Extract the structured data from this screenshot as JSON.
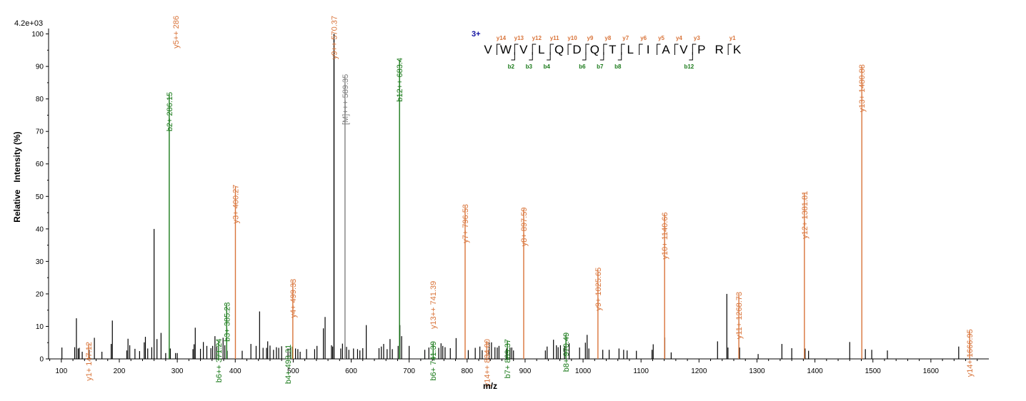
{
  "chart_data": {
    "type": "bar",
    "scale_label": "4.2e+03",
    "xlabel": "m/z",
    "ylabel": "Relative   Intensity (%)",
    "xlim": [
      78,
      1700
    ],
    "ylim": [
      0,
      101
    ],
    "grid": false,
    "x_ticks": [
      100,
      200,
      300,
      400,
      500,
      600,
      700,
      800,
      900,
      1000,
      1100,
      1200,
      1300,
      1400,
      1500,
      1600
    ],
    "x_tick_labels": [
      "100",
      "200",
      "300",
      "400",
      "500",
      "600",
      "700",
      "800",
      "900",
      "1000",
      "1100",
      "1200",
      "1300",
      "1400",
      "1500",
      "1600"
    ],
    "y_ticks": [
      0,
      10,
      20,
      30,
      40,
      50,
      60,
      70,
      80,
      90,
      100
    ],
    "y_tick_labels": [
      "0",
      "10",
      "20",
      "30",
      "40",
      "50",
      "60",
      "70",
      "80",
      "90",
      "100"
    ],
    "colors": {
      "unassigned": "#000000",
      "y_ion": "#d9743a",
      "b_ion": "#1a7a1a",
      "precursor": "#808080",
      "charge": "#1010a0"
    },
    "peaks": [
      [
        101,
        3.5
      ],
      [
        123,
        3.6
      ],
      [
        126,
        12.5
      ],
      [
        129,
        3.2
      ],
      [
        131,
        3.4
      ],
      [
        136,
        2.2
      ],
      [
        148,
        2.8
      ],
      [
        157,
        6.5
      ],
      [
        170,
        2.2
      ],
      [
        186,
        4.6
      ],
      [
        188,
        11.8
      ],
      [
        213,
        2.6
      ],
      [
        215,
        6.2
      ],
      [
        218,
        4.2
      ],
      [
        227,
        3.1
      ],
      [
        235,
        2.4
      ],
      [
        243,
        5.1
      ],
      [
        245,
        6.8
      ],
      [
        249,
        3.2
      ],
      [
        256,
        3.6
      ],
      [
        260,
        40
      ],
      [
        265,
        6.1
      ],
      [
        272,
        8
      ],
      [
        280,
        1.8
      ],
      [
        288,
        3.2
      ],
      [
        297,
        1.8
      ],
      [
        300,
        1.8
      ],
      [
        327,
        3
      ],
      [
        329,
        4.5
      ],
      [
        331,
        9.6
      ],
      [
        340,
        3.1
      ],
      [
        345,
        5.2
      ],
      [
        351,
        4
      ],
      [
        358,
        3.3
      ],
      [
        361,
        4
      ],
      [
        365,
        7
      ],
      [
        368,
        3.8
      ],
      [
        379,
        6.5
      ],
      [
        382,
        4.2
      ],
      [
        386,
        2.5
      ],
      [
        412,
        2.5
      ],
      [
        427,
        4.6
      ],
      [
        436,
        4
      ],
      [
        442,
        14.6
      ],
      [
        448,
        3.4
      ],
      [
        454,
        3.4
      ],
      [
        456,
        5.4
      ],
      [
        460,
        4.1
      ],
      [
        466,
        2.8
      ],
      [
        471,
        3.6
      ],
      [
        475,
        3.4
      ],
      [
        480,
        3.9
      ],
      [
        491,
        3.2
      ],
      [
        495,
        3.5
      ],
      [
        504,
        3.2
      ],
      [
        508,
        3
      ],
      [
        512,
        2.2
      ],
      [
        523,
        3
      ],
      [
        537,
        3
      ],
      [
        541,
        4
      ],
      [
        552,
        9.4
      ],
      [
        555,
        12.9
      ],
      [
        566,
        4.2
      ],
      [
        568,
        3.8
      ],
      [
        582,
        3.2
      ],
      [
        585,
        4.7
      ],
      [
        592,
        3.7
      ],
      [
        596,
        2.8
      ],
      [
        604,
        3.2
      ],
      [
        611,
        3
      ],
      [
        615,
        2.6
      ],
      [
        620,
        3.3
      ],
      [
        626,
        10.4
      ],
      [
        648,
        3.3
      ],
      [
        652,
        3.8
      ],
      [
        656,
        4.6
      ],
      [
        662,
        3
      ],
      [
        667,
        6.1
      ],
      [
        671,
        3
      ],
      [
        681,
        4
      ],
      [
        684,
        10.4
      ],
      [
        687,
        7
      ],
      [
        700,
        4
      ],
      [
        727,
        2.8
      ],
      [
        734,
        3.5
      ],
      [
        751,
        3.4
      ],
      [
        755,
        4.8
      ],
      [
        758,
        4
      ],
      [
        762,
        3.6
      ],
      [
        771,
        3.3
      ],
      [
        781,
        6.4
      ],
      [
        802,
        2.7
      ],
      [
        814,
        3.4
      ],
      [
        822,
        3.8
      ],
      [
        826,
        2.7
      ],
      [
        838,
        5
      ],
      [
        842,
        5.1
      ],
      [
        848,
        3.6
      ],
      [
        852,
        3.5
      ],
      [
        855,
        4
      ],
      [
        868,
        3.2
      ],
      [
        874,
        3.5
      ],
      [
        877,
        3.5
      ],
      [
        880,
        2.6
      ],
      [
        935,
        2.6
      ],
      [
        938,
        3.8
      ],
      [
        949,
        5.9
      ],
      [
        954,
        4.2
      ],
      [
        957,
        3.6
      ],
      [
        961,
        4.2
      ],
      [
        968,
        4
      ],
      [
        976,
        4.8
      ],
      [
        994,
        3.5
      ],
      [
        1004,
        5
      ],
      [
        1007,
        7.4
      ],
      [
        1010,
        3.2
      ],
      [
        1034,
        2.8
      ],
      [
        1045,
        2.8
      ],
      [
        1062,
        3.2
      ],
      [
        1070,
        2.8
      ],
      [
        1076,
        2.6
      ],
      [
        1092,
        2.5
      ],
      [
        1119,
        2.8
      ],
      [
        1121,
        4.5
      ],
      [
        1141,
        6.6
      ],
      [
        1152,
        2
      ],
      [
        1232,
        5.4
      ],
      [
        1248,
        20
      ],
      [
        1250,
        3.5
      ],
      [
        1270,
        3.5
      ],
      [
        1302,
        1.5
      ],
      [
        1343,
        4.6
      ],
      [
        1360,
        3.3
      ],
      [
        1383,
        3.2
      ],
      [
        1389,
        2.5
      ],
      [
        1460,
        5.2
      ],
      [
        1487,
        3
      ],
      [
        1498,
        2.8
      ],
      [
        1525,
        2.6
      ],
      [
        1648,
        3.8
      ]
    ],
    "annotated_peaks": [
      {
        "mz": 147.12,
        "rel": 4.6,
        "ion": "y",
        "label": "y1+ 147.12"
      },
      {
        "mz": 286.15,
        "rel": 81.5,
        "ion": "b",
        "label": "b2+ 286.15"
      },
      {
        "mz": 286.15,
        "rel": 81.5,
        "ion": "y",
        "label": "y5++ 286",
        "label_only": true,
        "label_top": true
      },
      {
        "mz": 371.24,
        "rel": 5.6,
        "ion": "b",
        "label": "b6++ 371.24"
      },
      {
        "mz": 385.23,
        "rel": 16.8,
        "ion": "b",
        "label": "b3+ 385.23"
      },
      {
        "mz": 400.27,
        "rel": 53,
        "ion": "y",
        "label": "y3+ 400.27"
      },
      {
        "mz": 498.31,
        "rel": 3.8,
        "ion": "b",
        "label": "b4+ 498.31"
      },
      {
        "mz": 499.33,
        "rel": 24,
        "ion": "y",
        "label": "y4+ 499.33"
      },
      {
        "mz": 570.37,
        "rel": 100,
        "ion": "unassigned",
        "label": "y9++ 570.37",
        "label_only_color": "y_ion",
        "label_top": true
      },
      {
        "mz": 589.35,
        "rel": 87,
        "ion": "precursor",
        "label": "[M]+++ 589.35"
      },
      {
        "mz": 683.4,
        "rel": 92,
        "ion": "b",
        "label": "b12++ 683.4"
      },
      {
        "mz": 741.39,
        "rel": 4.8,
        "ion": "b",
        "label": "b6+ 741.39"
      },
      {
        "mz": 741.39,
        "rel": 4.8,
        "ion": "y",
        "label": "y13++ 741.39",
        "label_only": true,
        "label_y": 24
      },
      {
        "mz": 796.53,
        "rel": 47,
        "ion": "y",
        "label": "y7+ 796.53"
      },
      {
        "mz": 834.0,
        "rel": 5.5,
        "ion": "y",
        "label": "y14++ 834.00"
      },
      {
        "mz": 869.37,
        "rel": 5.5,
        "ion": "b",
        "label": "b7+ 869.37"
      },
      {
        "mz": 897.59,
        "rel": 46,
        "ion": "y",
        "label": "y8+ 897.59"
      },
      {
        "mz": 970.49,
        "rel": 7.5,
        "ion": "b",
        "label": "b8+ 970.49"
      },
      {
        "mz": 1025.65,
        "rel": 27.5,
        "ion": "y",
        "label": "y9+ 1025.65"
      },
      {
        "mz": 1140.66,
        "rel": 44.5,
        "ion": "y",
        "label": "y10+ 1140.66"
      },
      {
        "mz": 1268.73,
        "rel": 20,
        "ion": "y",
        "label": "y11+ 1268.73"
      },
      {
        "mz": 1381.81,
        "rel": 51,
        "ion": "y",
        "label": "y12+ 1381.81"
      },
      {
        "mz": 1480.88,
        "rel": 90,
        "ion": "y",
        "label": "y13+ 1480.88"
      },
      {
        "mz": 1666.95,
        "rel": 8.5,
        "ion": "y",
        "label": "y14+ 1666.95"
      }
    ],
    "sequence": {
      "charge": "3+",
      "residues": [
        "V",
        "W",
        "V",
        "L",
        "Q",
        "D",
        "Q",
        "T",
        "L",
        "I",
        "A",
        "V",
        "P",
        "R",
        "K"
      ],
      "y_ions": [
        {
          "after": 1,
          "label": "y14"
        },
        {
          "after": 2,
          "label": "y13"
        },
        {
          "after": 3,
          "label": "y12"
        },
        {
          "after": 4,
          "label": "y11"
        },
        {
          "after": 5,
          "label": "y10"
        },
        {
          "after": 6,
          "label": "y9"
        },
        {
          "after": 7,
          "label": "y8"
        },
        {
          "after": 8,
          "label": "y7"
        },
        {
          "after": 9,
          "label": "y6"
        },
        {
          "after": 10,
          "label": "y5"
        },
        {
          "after": 11,
          "label": "y4"
        },
        {
          "after": 12,
          "label": "y3"
        },
        {
          "after": 14,
          "label": "y1"
        }
      ],
      "b_ions": [
        {
          "after": 2,
          "label": "b2"
        },
        {
          "after": 3,
          "label": "b3"
        },
        {
          "after": 4,
          "label": "b4"
        },
        {
          "after": 6,
          "label": "b6"
        },
        {
          "after": 7,
          "label": "b7"
        },
        {
          "after": 8,
          "label": "b8"
        },
        {
          "after": 12,
          "label": "b12"
        }
      ]
    }
  }
}
